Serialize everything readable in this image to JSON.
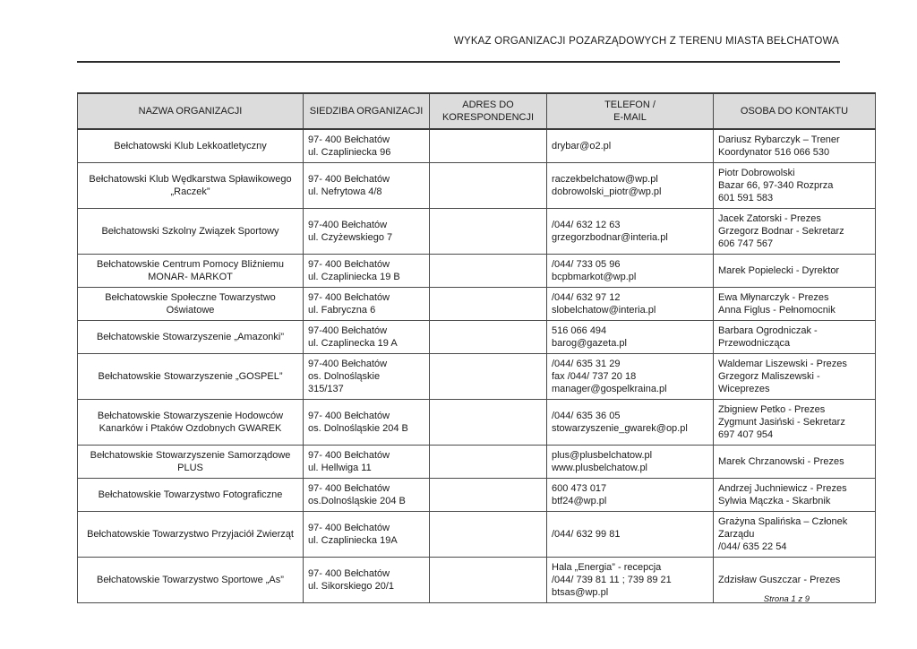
{
  "document": {
    "title": "WYKAZ ORGANIZACJI POZARZĄDOWYCH Z TERENU MIASTA BEŁCHATOWA",
    "footer": "Strona 1 z 9"
  },
  "colors": {
    "header_bg": "#dcdcdc",
    "border": "#4a4a4a",
    "text": "#1a1a1a"
  },
  "table": {
    "columns": [
      "NAZWA ORGANIZACJI",
      "SIEDZIBA ORGANIZACJI",
      "ADRES DO\nKORESPONDENCJI",
      "TELEFON /\nE-MAIL",
      "OSOBA DO KONTAKTU"
    ],
    "rows": [
      {
        "nazwa": "Bełchatowski Klub Lekkoatletyczny",
        "siedziba": "97- 400 Bełchatów\nul. Czapliniecka 96",
        "adres_korespondencja": "",
        "telefon_email": "drybar@o2.pl",
        "osoba": "Dariusz Rybarczyk – Trener\nKoordynator  516 066 530"
      },
      {
        "nazwa": "Bełchatowski Klub Wędkarstwa Spławikowego „Raczek”",
        "siedziba": "97- 400 Bełchatów\nul. Nefrytowa 4/8",
        "adres_korespondencja": "",
        "telefon_email": "raczekbelchatow@wp.pl\ndobrowolski_piotr@wp.pl",
        "osoba": "Piotr Dobrowolski\nBazar 66, 97-340 Rozprza\n601 591 583"
      },
      {
        "nazwa": "Bełchatowski Szkolny Związek Sportowy",
        "siedziba": "97-400 Bełchatów\nul. Czyżewskiego 7",
        "adres_korespondencja": "",
        "telefon_email": "/044/ 632 12 63\ngrzegorzbodnar@interia.pl",
        "osoba": "Jacek Zatorski - Prezes\nGrzegorz Bodnar -  Sekretarz\n606 747 567"
      },
      {
        "nazwa": "Bełchatowskie Centrum Pomocy Bliźniemu MONAR- MARKOT",
        "siedziba": "97- 400 Bełchatów\nul. Czapliniecka 19 B",
        "adres_korespondencja": "",
        "telefon_email": "/044/ 733 05 96\nbcpbmarkot@wp.pl",
        "osoba": "Marek Popielecki - Dyrektor"
      },
      {
        "nazwa": "Bełchatowskie Społeczne Towarzystwo Oświatowe",
        "siedziba": "97- 400 Bełchatów\nul. Fabryczna 6",
        "adres_korespondencja": "",
        "telefon_email": "/044/ 632 97 12\nslobelchatow@interia.pl",
        "osoba": "Ewa Młynarczyk - Prezes\nAnna Figlus - Pełnomocnik"
      },
      {
        "nazwa": "Bełchatowskie Stowarzyszenie „Amazonki”",
        "siedziba": "97-400 Bełchatów\nul. Czaplinecka 19 A",
        "adres_korespondencja": "",
        "telefon_email": "516 066 494\nbarog@gazeta.pl",
        "osoba": "Barbara Ogrodniczak - Przewodnicząca"
      },
      {
        "nazwa": "Bełchatowskie Stowarzyszenie „GOSPEL”",
        "siedziba": "97-400 Bełchatów\nos. Dolnośląskie\n315/137",
        "adres_korespondencja": "",
        "telefon_email": "/044/ 635 31 29\nfax /044/ 737 20 18\nmanager@gospelkraina.pl",
        "osoba": "Waldemar Liszewski - Prezes\nGrzegorz Maliszewski - Wiceprezes"
      },
      {
        "nazwa": "Bełchatowskie Stowarzyszenie Hodowców Kanarków i Ptaków Ozdobnych GWAREK",
        "siedziba": "97- 400 Bełchatów\nos. Dolnośląskie 204 B",
        "adres_korespondencja": "",
        "telefon_email": "/044/ 635 36 05\nstowarzyszenie_gwarek@op.pl",
        "osoba": "Zbigniew Petko - Prezes\nZygmunt Jasiński - Sekretarz\n697 407 954"
      },
      {
        "nazwa": "Bełchatowskie Stowarzyszenie Samorządowe PLUS",
        "siedziba": "97- 400 Bełchatów\nul. Hellwiga 11",
        "adres_korespondencja": "",
        "telefon_email": "plus@plusbelchatow.pl\nwww.plusbelchatow.pl",
        "osoba": "Marek Chrzanowski - Prezes"
      },
      {
        "nazwa": "Bełchatowskie Towarzystwo Fotograficzne",
        "siedziba": "97- 400 Bełchatów\nos.Dolnośląskie 204 B",
        "adres_korespondencja": "",
        "telefon_email": "600 473 017\nbtf24@wp.pl",
        "osoba": "Andrzej Juchniewicz - Prezes\nSylwia Mączka - Skarbnik"
      },
      {
        "nazwa": "Bełchatowskie Towarzystwo Przyjaciół Zwierząt",
        "siedziba": "97- 400 Bełchatów\nul. Czapliniecka 19A",
        "adres_korespondencja": "",
        "telefon_email": "/044/ 632 99 81",
        "osoba": "Grażyna Spalińska – Członek Zarządu\n/044/ 635 22 54"
      },
      {
        "nazwa": "Bełchatowskie Towarzystwo Sportowe „As”",
        "siedziba": "97- 400 Bełchatów\nul. Sikorskiego 20/1",
        "adres_korespondencja": "",
        "telefon_email": "Hala „Energia” - recepcja\n/044/ 739 81 11 ; 739 89 21\nbtsas@wp.pl",
        "osoba": "Zdzisław Guszczar - Prezes"
      }
    ]
  }
}
